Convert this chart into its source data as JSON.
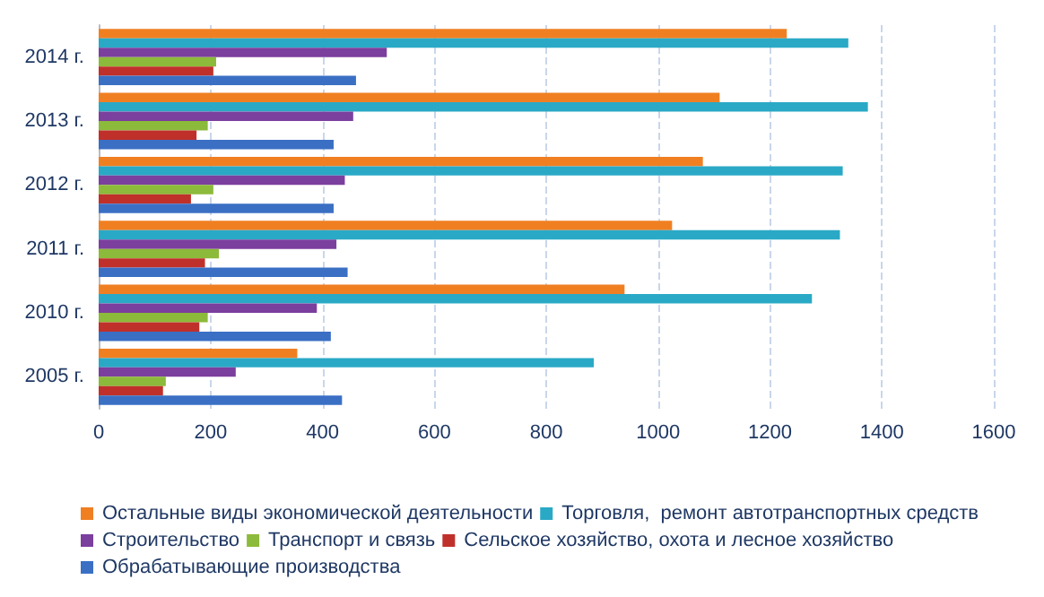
{
  "chart_data": {
    "type": "bar",
    "orientation": "horizontal",
    "categories": [
      "2014 г.",
      "2013 г.",
      "2012 г.",
      "2011 г.",
      "2010 г.",
      "2005 г."
    ],
    "series": [
      {
        "name": "Остальные виды экономической деятельности",
        "color": "#f07f22",
        "values": [
          1230,
          1110,
          1080,
          1025,
          940,
          355
        ]
      },
      {
        "name": "Торговля,  ремонт автотранспортных средств",
        "color": "#2aa9c6",
        "values": [
          1340,
          1375,
          1330,
          1325,
          1275,
          885
        ]
      },
      {
        "name": "Строительство",
        "color": "#7b3f9e",
        "values": [
          515,
          455,
          440,
          425,
          390,
          245
        ]
      },
      {
        "name": "Транспорт и связь",
        "color": "#8cba3a",
        "values": [
          210,
          195,
          205,
          215,
          195,
          120
        ]
      },
      {
        "name": "Сельское хозяйство, охота и лесное хозяйство",
        "color": "#c0302a",
        "values": [
          205,
          175,
          165,
          190,
          180,
          115
        ]
      },
      {
        "name": "Обрабатывающие производства",
        "color": "#3a6fc4",
        "values": [
          460,
          420,
          420,
          445,
          415,
          435
        ]
      }
    ],
    "xlim": [
      0,
      1600
    ],
    "xticks": [
      0,
      200,
      400,
      600,
      800,
      1000,
      1200,
      1400,
      1600
    ],
    "grid": "x",
    "legend": "bottom"
  }
}
